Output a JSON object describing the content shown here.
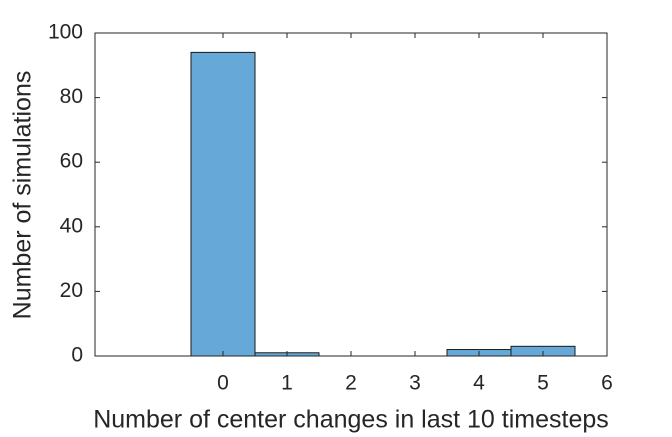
{
  "chart_data": {
    "type": "histogram",
    "x_label": "Number of center changes in last 10 timesteps",
    "y_label": "Number of simulations",
    "bins": [
      -0.5,
      0.5,
      1.5,
      2.5,
      3.5,
      4.5,
      5.5
    ],
    "values": [
      94,
      1,
      0,
      0,
      2,
      3
    ],
    "color": "#66a9d8",
    "xlim": [
      -2,
      6
    ],
    "xticks": [
      0,
      1,
      2,
      3,
      4,
      5,
      6
    ],
    "ylim": [
      0,
      100
    ],
    "yticks": [
      0,
      20,
      40,
      60,
      80,
      100
    ]
  }
}
